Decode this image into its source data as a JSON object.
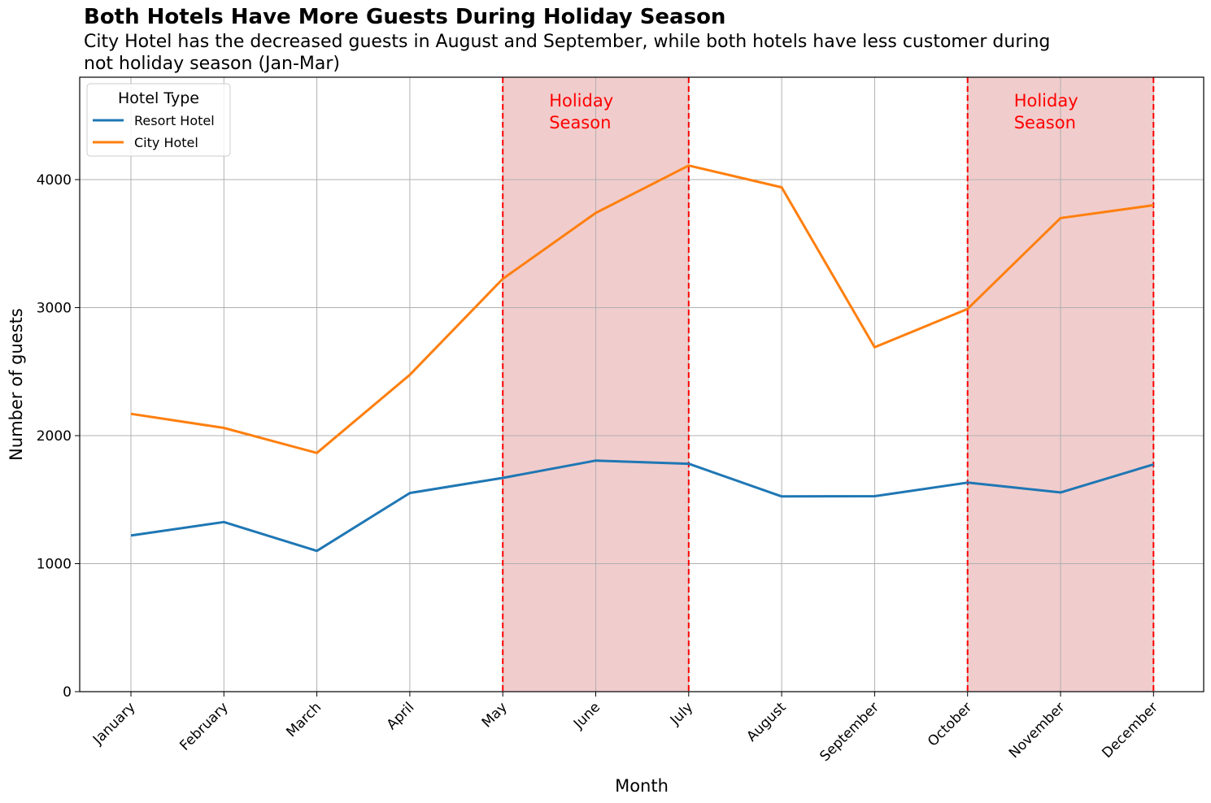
{
  "title": "Both Hotels Have More Guests During Holiday Season",
  "subtitle": "City Hotel has the decreased guests in August and September, while both hotels have less customer during not holiday season (Jan-Mar)",
  "chart_data": {
    "type": "line",
    "xlabel": "Month",
    "ylabel": "Number of guests",
    "categories": [
      "January",
      "February",
      "March",
      "April",
      "May",
      "June",
      "July",
      "August",
      "September",
      "October",
      "November",
      "December"
    ],
    "ylim": [
      0,
      4800
    ],
    "yticks": [
      0,
      1000,
      2000,
      3000,
      4000
    ],
    "grid": true,
    "legend": {
      "title": "Hotel Type",
      "placement": "top-left"
    },
    "series": [
      {
        "name": "Resort Hotel",
        "color": "#1f77b4",
        "values": [
          1220,
          1325,
          1100,
          1552,
          1670,
          1805,
          1780,
          1525,
          1527,
          1633,
          1556,
          1775
        ]
      },
      {
        "name": "City Hotel",
        "color": "#ff7f0e",
        "values": [
          2170,
          2060,
          1865,
          2475,
          3225,
          3740,
          4110,
          3940,
          2690,
          2990,
          3700,
          3800
        ]
      }
    ],
    "shaded_regions": [
      {
        "start": "May",
        "end": "July",
        "label_line1": "Holiday",
        "label_line2": "Season",
        "color": "#c83232"
      },
      {
        "start": "October",
        "end": "December",
        "label_line1": "Holiday",
        "label_line2": "Season",
        "color": "#c83232"
      }
    ],
    "annotation_color": "#ff0000"
  }
}
